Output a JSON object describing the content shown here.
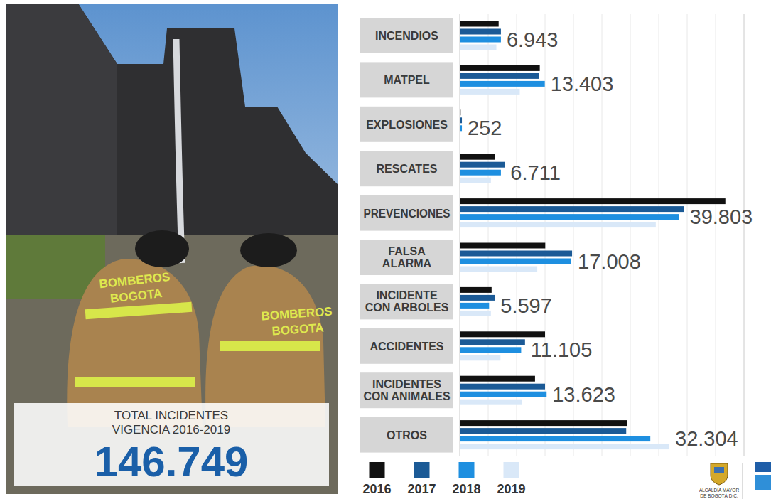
{
  "chart_data": {
    "type": "bar",
    "orientation": "horizontal",
    "categories": [
      "INCENDIOS",
      "MATPEL",
      "EXPLOSIONES",
      "RESCATES",
      "PREVENCIONES",
      "FALSA ALARMA",
      "INCIDENTE CON ARBOLES",
      "ACCIDENTES",
      "INCIDENTES CON ANIMALES",
      "OTROS"
    ],
    "series": [
      {
        "name": "2016",
        "color": "#111111",
        "values": [
          1710,
          3520,
          40,
          1540,
          11680,
          3760,
          1400,
          3750,
          3310,
          7350
        ]
      },
      {
        "name": "2017",
        "color": "#1b5a96",
        "values": [
          1810,
          3490,
          95,
          1980,
          9860,
          4940,
          1540,
          2870,
          3750,
          7320
        ]
      },
      {
        "name": "2018",
        "color": "#1e8fe0",
        "values": [
          1810,
          3740,
          95,
          1810,
          9640,
          4900,
          1290,
          2700,
          3820,
          8380
        ]
      },
      {
        "name": "2019",
        "color": "#d9e8f8",
        "values": [
          1610,
          2640,
          22,
          1370,
          8620,
          3410,
          1370,
          1790,
          2740,
          9220
        ]
      }
    ],
    "total_labels": [
      "6.943",
      "13.403",
      "252",
      "6.711",
      "39.803",
      "17.008",
      "5.597",
      "11.105",
      "13.623",
      "32.304"
    ],
    "xlim": [
      0,
      12500
    ],
    "xticks": [
      0,
      1250,
      2500,
      3750,
      5000,
      6250,
      7500,
      8750,
      10000,
      11250,
      12500
    ],
    "grid": true,
    "tick_labels": false,
    "legend": "bottom"
  },
  "summary": {
    "lines": [
      "TOTAL INCIDENTES",
      "VIGENCIA 2016-2019"
    ],
    "total": "146.749"
  },
  "photo": {
    "uniform_texts": [
      [
        "BOMBEROS",
        "BOGOTA"
      ],
      [
        "BOMBEROS",
        "BOGOTA"
      ]
    ]
  },
  "logo": {
    "lines": [
      "ALCALDÍA MAYOR",
      "DE BOGOTÁ D.C."
    ]
  }
}
